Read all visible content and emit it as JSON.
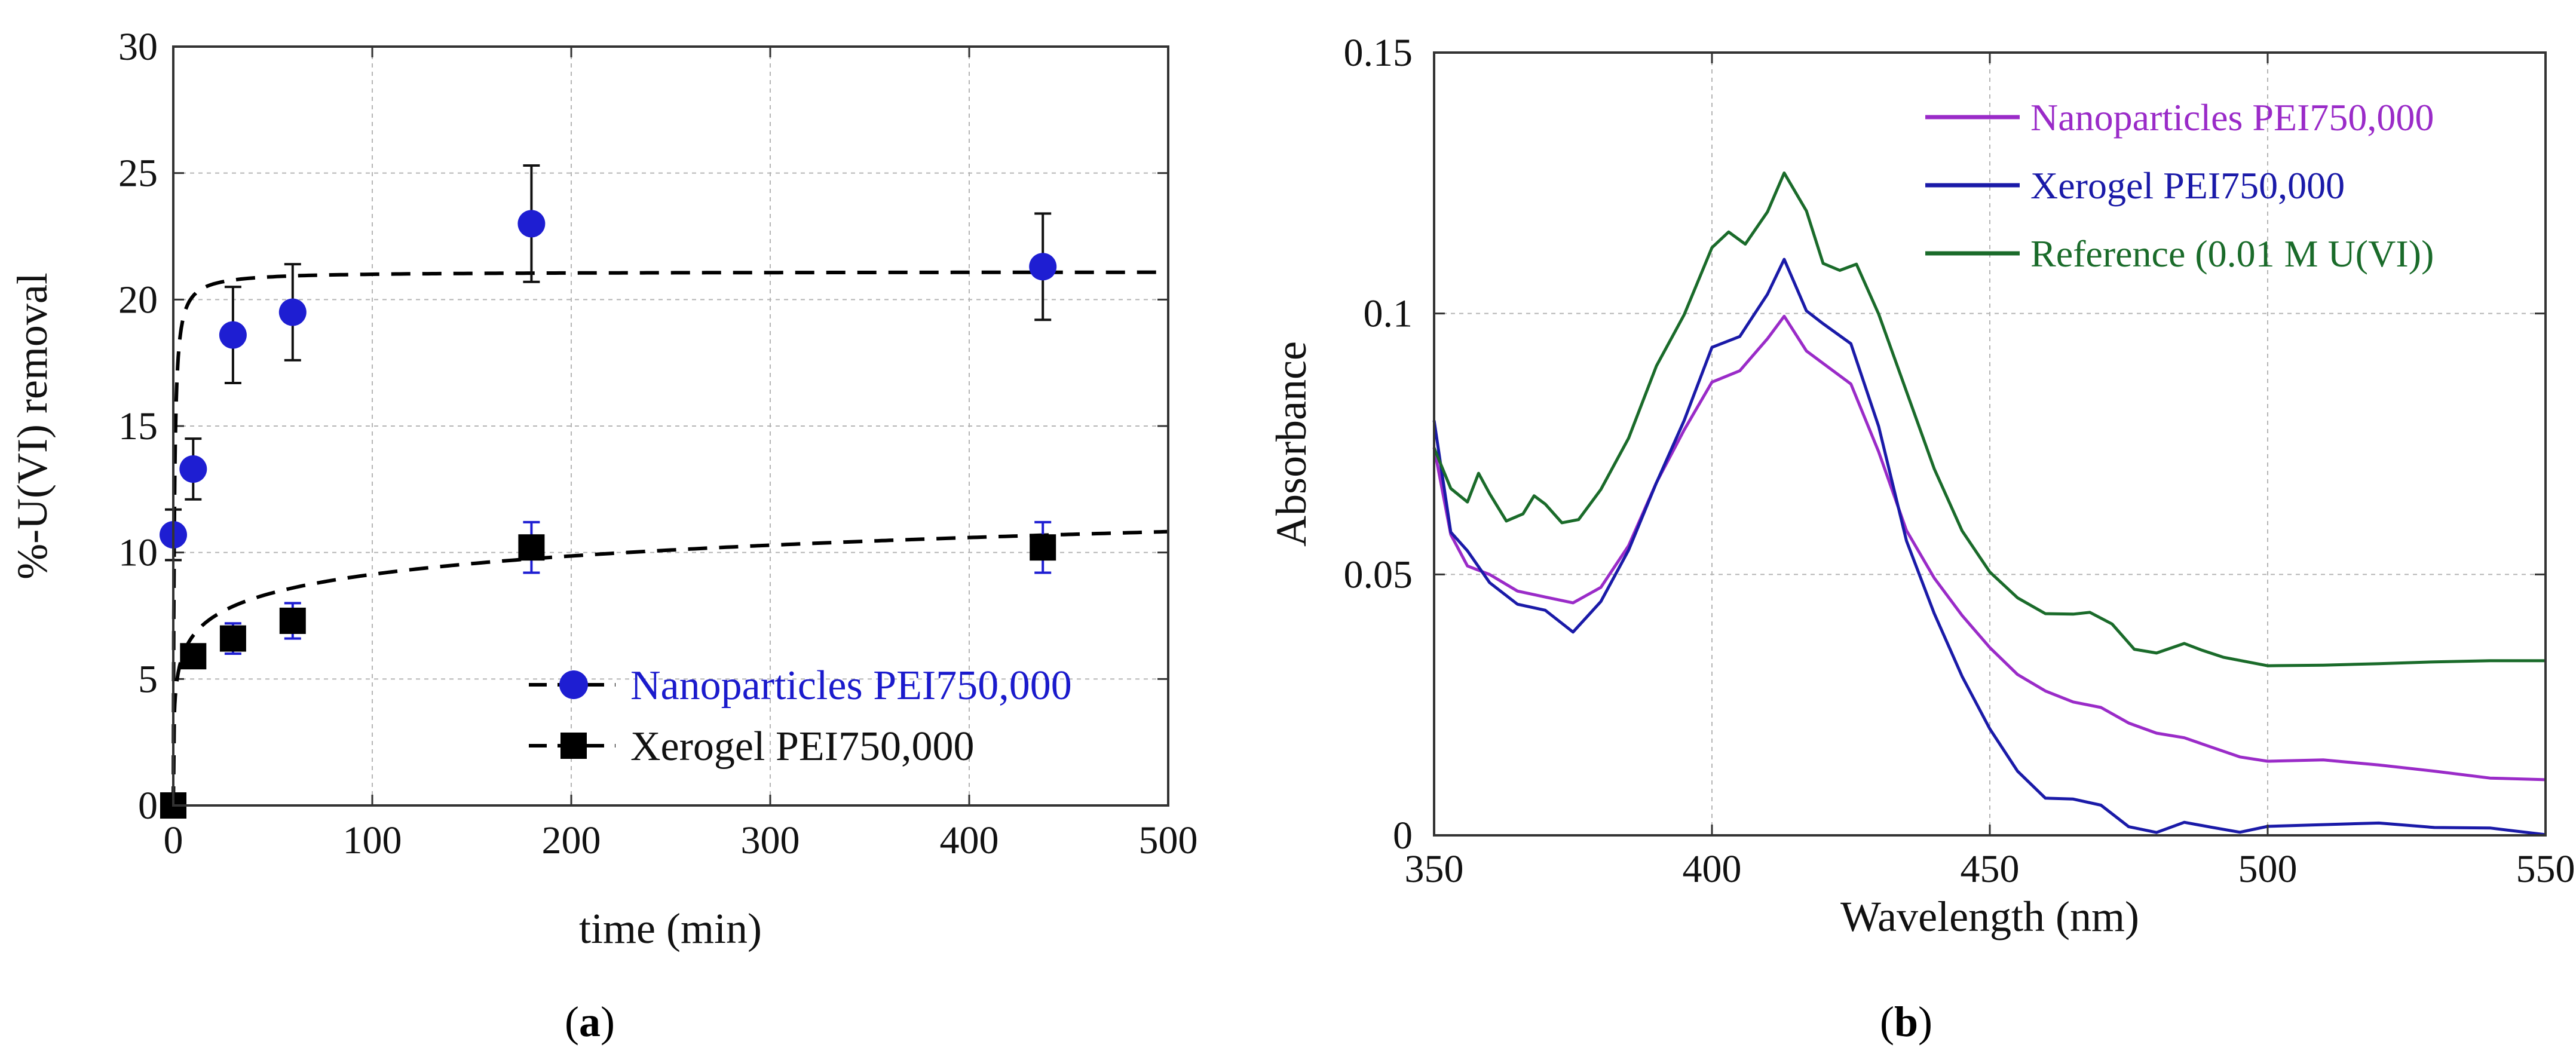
{
  "chart_data": [
    {
      "id": "a",
      "type": "scatter",
      "caption": "a",
      "xlabel": "time (min)",
      "ylabel": "%-U(VI) removal",
      "xlim": [
        0,
        500
      ],
      "ylim": [
        0,
        30
      ],
      "xticks": [
        0,
        100,
        200,
        300,
        400,
        500
      ],
      "xtick_labels": [
        "0",
        "100",
        "200",
        "300",
        "400",
        "500"
      ],
      "yticks": [
        0,
        5,
        10,
        15,
        20,
        25,
        30
      ],
      "ytick_labels": [
        "0",
        "5",
        "10",
        "15",
        "20",
        "25",
        "30"
      ],
      "grid": true,
      "legend_position": "bottom-right",
      "series": [
        {
          "name": "Nanoparticles PEI750,000",
          "marker": "circle",
          "color": "#1e1ed2",
          "label_color": "#1a1acc",
          "x": [
            0,
            10,
            30,
            60,
            180,
            437
          ],
          "y": [
            10.7,
            13.3,
            18.6,
            19.5,
            23.0,
            21.3
          ],
          "err": [
            1.0,
            1.2,
            1.9,
            1.9,
            2.3,
            2.1
          ],
          "fit": {
            "model": "pseudo-second-order",
            "qe": 21.1,
            "k": 0.1,
            "y0": 0
          }
        },
        {
          "name": "Xerogel PEI750,000",
          "marker": "square",
          "color": "#000000",
          "label_color": "#111111",
          "x": [
            0,
            10,
            30,
            60,
            180,
            437
          ],
          "y": [
            0,
            5.9,
            6.6,
            7.3,
            10.2,
            10.2
          ],
          "err": [
            0,
            0.4,
            0.6,
            0.7,
            1.0,
            1.0
          ],
          "fit": {
            "model": "log",
            "a": 4.3,
            "b": 1.05
          }
        }
      ]
    },
    {
      "id": "b",
      "type": "line",
      "caption": "b",
      "xlabel": "Wavelength (nm)",
      "ylabel": "Absorbance",
      "xlim": [
        350,
        550
      ],
      "ylim": [
        0,
        0.15
      ],
      "xticks": [
        350,
        400,
        450,
        500,
        550
      ],
      "xtick_labels": [
        "350",
        "400",
        "450",
        "500",
        "550"
      ],
      "yticks": [
        0,
        0.05,
        0.1,
        0.15
      ],
      "ytick_labels": [
        "0",
        "0.05",
        "0.1",
        "0.15"
      ],
      "grid": true,
      "legend_position": "top-right",
      "series": [
        {
          "name": "Nanoparticles PEI750,000",
          "color": "#9a2bc8",
          "x": [
            350,
            353,
            356,
            360,
            365,
            370,
            375,
            380,
            385,
            390,
            395,
            400,
            405,
            410,
            413,
            417,
            420,
            425,
            430,
            435,
            440,
            445,
            450,
            455,
            460,
            465,
            470,
            475,
            480,
            485,
            490,
            495,
            500,
            510,
            520,
            530,
            540,
            550
          ],
          "y": [
            0.074,
            0.058,
            0.052,
            0.05,
            0.047,
            0.046,
            0.045,
            0.048,
            0.056,
            0.068,
            0.078,
            0.087,
            0.089,
            0.095,
            0.099,
            0.093,
            0.09,
            0.086,
            0.073,
            0.058,
            0.049,
            0.042,
            0.036,
            0.031,
            0.028,
            0.026,
            0.025,
            0.022,
            0.02,
            0.019,
            0.017,
            0.015,
            0.014,
            0.014,
            0.013,
            0.012,
            0.011,
            0.011
          ]
        },
        {
          "name": "Xerogel PEI750,000",
          "color": "#1a1aa8",
          "x": [
            350,
            353,
            356,
            360,
            365,
            370,
            375,
            380,
            385,
            390,
            395,
            400,
            405,
            410,
            413,
            417,
            420,
            425,
            430,
            435,
            440,
            445,
            450,
            455,
            460,
            465,
            470,
            475,
            480,
            485,
            490,
            495,
            500,
            510,
            520,
            530,
            540,
            550
          ],
          "y": [
            0.079,
            0.058,
            0.055,
            0.048,
            0.044,
            0.043,
            0.039,
            0.045,
            0.055,
            0.068,
            0.08,
            0.094,
            0.096,
            0.104,
            0.11,
            0.101,
            0.098,
            0.094,
            0.078,
            0.056,
            0.042,
            0.03,
            0.02,
            0.012,
            0.007,
            0.007,
            0.006,
            0.002,
            0.001,
            0.003,
            0.002,
            0.001,
            0.002,
            0.002,
            0.002,
            0.001,
            0.001,
            0.0
          ]
        },
        {
          "name": "Reference (0.01 M U(VI))",
          "color": "#1a6b2a",
          "x": [
            350,
            353,
            356,
            358,
            360,
            363,
            366,
            368,
            370,
            373,
            376,
            380,
            385,
            390,
            395,
            400,
            403,
            406,
            410,
            413,
            417,
            420,
            423,
            426,
            430,
            435,
            440,
            445,
            450,
            455,
            460,
            465,
            468,
            472,
            476,
            480,
            485,
            488,
            492,
            500,
            510,
            520,
            530,
            540,
            550
          ],
          "y": [
            0.074,
            0.066,
            0.064,
            0.069,
            0.065,
            0.06,
            0.062,
            0.065,
            0.063,
            0.06,
            0.061,
            0.066,
            0.076,
            0.09,
            0.1,
            0.113,
            0.116,
            0.113,
            0.12,
            0.127,
            0.12,
            0.11,
            0.108,
            0.109,
            0.1,
            0.085,
            0.07,
            0.058,
            0.05,
            0.045,
            0.042,
            0.042,
            0.043,
            0.04,
            0.036,
            0.035,
            0.037,
            0.036,
            0.034,
            0.033,
            0.033,
            0.033,
            0.033,
            0.033,
            0.033
          ]
        }
      ]
    }
  ]
}
